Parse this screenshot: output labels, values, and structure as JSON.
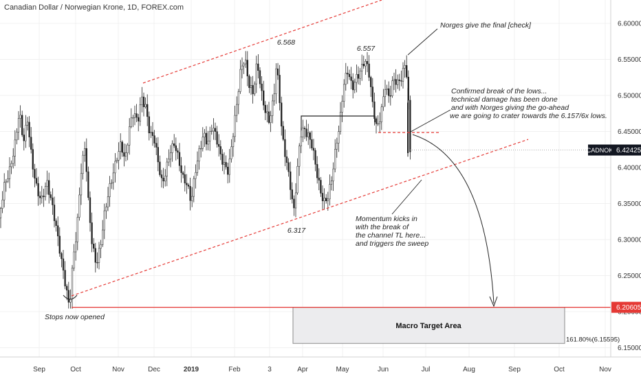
{
  "header": {
    "title": "Canadian Dollar / Norwegian Krone, 1D, FOREX.com"
  },
  "chart_data": {
    "type": "candlestick",
    "symbol": "CADNOK",
    "timeframe": "1D",
    "source": "FOREX.com",
    "x_tick_labels": [
      "Sep",
      "Oct",
      "Nov",
      "Dec",
      "2019",
      "Feb",
      "3",
      "Apr",
      "May",
      "Jun",
      "Jul",
      "Aug",
      "Sep",
      "Oct",
      "Nov"
    ],
    "y_tick_labels": [
      "6.60000",
      "6.55000",
      "6.50000",
      "6.45000",
      "6.40000",
      "6.35000",
      "6.30000",
      "6.25000",
      "6.20000",
      "6.15000"
    ],
    "ylim": [
      6.125,
      6.625
    ],
    "current_price": {
      "label": "CADNOK",
      "value": "6.42425",
      "color": "#131722"
    },
    "support_level": {
      "value": "6.20605",
      "color": "#e53935"
    },
    "fib_label": "161.80%(6.15595)",
    "target_box": {
      "label": "Macro Target Area",
      "top": 6.20605,
      "bottom": 6.15595
    },
    "swing_labels": [
      {
        "text": "6.568",
        "value": 6.568
      },
      {
        "text": "6.557",
        "value": 6.557
      },
      {
        "text": "6.317",
        "value": 6.317
      }
    ],
    "annotations": [
      {
        "id": "norges",
        "lines": [
          "Norges give the final [check]"
        ]
      },
      {
        "id": "confirmed",
        "lines": [
          "Confirmed break of the lows...",
          "technical damage has been done",
          "and with Norges giving the go-ahead",
          "we are going to crater towards the 6.157/6x lows."
        ]
      },
      {
        "id": "momentum",
        "lines": [
          "Momentum kicks in",
          "with the break of",
          "the channel TL here...",
          "and triggers the sweep"
        ]
      },
      {
        "id": "stops",
        "lines": [
          "Stops now opened"
        ]
      }
    ],
    "keypoints": [
      [
        0,
        6.33
      ],
      [
        6,
        6.37
      ],
      [
        14,
        6.4
      ],
      [
        22,
        6.44
      ],
      [
        28,
        6.48
      ],
      [
        34,
        6.43
      ],
      [
        40,
        6.46
      ],
      [
        46,
        6.41
      ],
      [
        52,
        6.38
      ],
      [
        60,
        6.36
      ],
      [
        68,
        6.38
      ],
      [
        76,
        6.34
      ],
      [
        84,
        6.3
      ],
      [
        90,
        6.27
      ],
      [
        96,
        6.24
      ],
      [
        101,
        6.21
      ],
      [
        106,
        6.27
      ],
      [
        112,
        6.31
      ],
      [
        118,
        6.39
      ],
      [
        124,
        6.43
      ],
      [
        128,
        6.36
      ],
      [
        134,
        6.3
      ],
      [
        140,
        6.27
      ],
      [
        146,
        6.29
      ],
      [
        152,
        6.33
      ],
      [
        158,
        6.36
      ],
      [
        164,
        6.39
      ],
      [
        170,
        6.42
      ],
      [
        176,
        6.44
      ],
      [
        182,
        6.41
      ],
      [
        188,
        6.45
      ],
      [
        194,
        6.47
      ],
      [
        200,
        6.46
      ],
      [
        206,
        6.5
      ],
      [
        212,
        6.49
      ],
      [
        218,
        6.45
      ],
      [
        224,
        6.44
      ],
      [
        230,
        6.4
      ],
      [
        236,
        6.37
      ],
      [
        242,
        6.4
      ],
      [
        248,
        6.43
      ],
      [
        254,
        6.44
      ],
      [
        260,
        6.41
      ],
      [
        266,
        6.38
      ],
      [
        272,
        6.37
      ],
      [
        278,
        6.35
      ],
      [
        284,
        6.4
      ],
      [
        290,
        6.43
      ],
      [
        296,
        6.45
      ],
      [
        302,
        6.43
      ],
      [
        308,
        6.45
      ],
      [
        314,
        6.44
      ],
      [
        320,
        6.42
      ],
      [
        326,
        6.41
      ],
      [
        332,
        6.4
      ],
      [
        338,
        6.44
      ],
      [
        344,
        6.48
      ],
      [
        350,
        6.53
      ],
      [
        356,
        6.55
      ],
      [
        362,
        6.52
      ],
      [
        368,
        6.51
      ],
      [
        374,
        6.55
      ],
      [
        380,
        6.5
      ],
      [
        386,
        6.47
      ],
      [
        392,
        6.46
      ],
      [
        398,
        6.5
      ],
      [
        402,
        6.55
      ],
      [
        406,
        6.51
      ],
      [
        410,
        6.45
      ],
      [
        416,
        6.41
      ],
      [
        422,
        6.37
      ],
      [
        427,
        6.33
      ],
      [
        432,
        6.39
      ],
      [
        437,
        6.45
      ],
      [
        442,
        6.46
      ],
      [
        448,
        6.45
      ],
      [
        454,
        6.43
      ],
      [
        460,
        6.39
      ],
      [
        466,
        6.36
      ],
      [
        471,
        6.35
      ],
      [
        476,
        6.36
      ],
      [
        482,
        6.39
      ],
      [
        488,
        6.43
      ],
      [
        494,
        6.46
      ],
      [
        500,
        6.51
      ],
      [
        506,
        6.53
      ],
      [
        512,
        6.51
      ],
      [
        518,
        6.53
      ],
      [
        524,
        6.54
      ],
      [
        530,
        6.55
      ],
      [
        536,
        6.53
      ],
      [
        542,
        6.48
      ],
      [
        548,
        6.45
      ],
      [
        554,
        6.48
      ],
      [
        560,
        6.52
      ],
      [
        566,
        6.5
      ],
      [
        572,
        6.52
      ],
      [
        578,
        6.51
      ],
      [
        584,
        6.52
      ],
      [
        590,
        6.55
      ],
      [
        594,
        6.49
      ],
      [
        596,
        6.43
      ]
    ]
  }
}
